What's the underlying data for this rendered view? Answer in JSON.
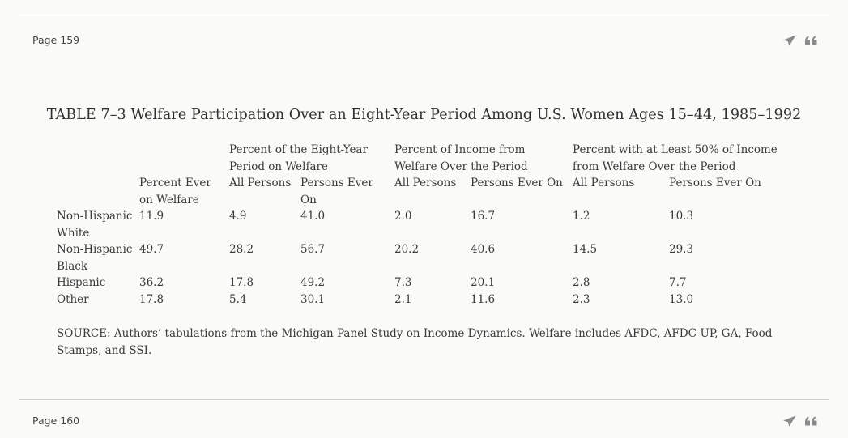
{
  "page_top": {
    "label": "Page 159"
  },
  "page_bottom": {
    "label": "Page 160"
  },
  "actions": {
    "share_icon": "paper-plane",
    "quote_icon": "quote-marks"
  },
  "table": {
    "title": "TABLE 7–3 Welfare Participation Over an Eight-Year Period Among U.S. Women Ages 15–44, 1985–1992",
    "group_headers": [
      "Percent of the Eight-Year Period on Welfare",
      "Percent of Income from Welfare Over the Period",
      "Percent with at Least 50% of Income from Welfare Over the Period"
    ],
    "sub_headers": [
      "Percent Ever on Welfare",
      "All Persons",
      "Persons Ever On",
      "All Persons",
      "Persons Ever On",
      "All Persons",
      "Persons Ever On"
    ],
    "rows": [
      {
        "label": "Non-Hispanic White",
        "values": [
          "11.9",
          "4.9",
          "41.0",
          "2.0",
          "16.7",
          "1.2",
          "10.3"
        ]
      },
      {
        "label": "Non-Hispanic Black",
        "values": [
          "49.7",
          "28.2",
          "56.7",
          "20.2",
          "40.6",
          "14.5",
          "29.3"
        ]
      },
      {
        "label": "Hispanic",
        "values": [
          "36.2",
          "17.8",
          "49.2",
          "7.3",
          "20.1",
          "2.8",
          "7.7"
        ]
      },
      {
        "label": "Other",
        "values": [
          "17.8",
          "5.4",
          "30.1",
          "2.1",
          "11.6",
          "2.3",
          "13.0"
        ]
      }
    ],
    "source": "SOURCE: Authors’ tabulations from the Michigan Panel Study on Income Dynamics. Welfare includes AFDC, AFDC-UP, GA, Food Stamps, and SSI."
  }
}
